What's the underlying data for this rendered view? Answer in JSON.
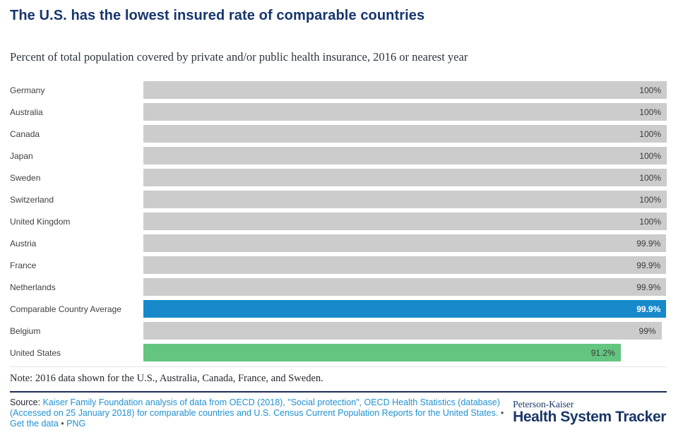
{
  "header": {
    "title": "The U.S. has the lowest insured rate of comparable countries",
    "subtitle": "Percent of total population covered by private and/or public health insurance, 2016 or nearest year"
  },
  "chart_data": {
    "type": "bar",
    "orientation": "horizontal",
    "xlim": [
      0,
      100
    ],
    "unit": "%",
    "grid": false,
    "value_labels_position": "inside-end",
    "categories": [
      "Germany",
      "Australia",
      "Canada",
      "Japan",
      "Sweden",
      "Switzerland",
      "United Kingdom",
      "Austria",
      "France",
      "Netherlands",
      "Comparable Country Average",
      "Belgium",
      "United States"
    ],
    "values": [
      100,
      100,
      100,
      100,
      100,
      100,
      100,
      99.9,
      99.9,
      99.9,
      99.9,
      99,
      91.2
    ],
    "rows": [
      {
        "label": "Germany",
        "value": 100,
        "display": "100%",
        "style": "default"
      },
      {
        "label": "Australia",
        "value": 100,
        "display": "100%",
        "style": "default"
      },
      {
        "label": "Canada",
        "value": 100,
        "display": "100%",
        "style": "default"
      },
      {
        "label": "Japan",
        "value": 100,
        "display": "100%",
        "style": "default"
      },
      {
        "label": "Sweden",
        "value": 100,
        "display": "100%",
        "style": "default"
      },
      {
        "label": "Switzerland",
        "value": 100,
        "display": "100%",
        "style": "default"
      },
      {
        "label": "United Kingdom",
        "value": 100,
        "display": "100%",
        "style": "default"
      },
      {
        "label": "Austria",
        "value": 99.9,
        "display": "99.9%",
        "style": "default"
      },
      {
        "label": "France",
        "value": 99.9,
        "display": "99.9%",
        "style": "default"
      },
      {
        "label": "Netherlands",
        "value": 99.9,
        "display": "99.9%",
        "style": "default"
      },
      {
        "label": "Comparable Country Average",
        "value": 99.9,
        "display": "99.9%",
        "style": "average"
      },
      {
        "label": "Belgium",
        "value": 99,
        "display": "99%",
        "style": "default"
      },
      {
        "label": "United States",
        "value": 91.2,
        "display": "91.2%",
        "style": "us"
      }
    ]
  },
  "note": {
    "text": "Note: 2016 data shown for the U.S., Australia, Canada, France, and Sweden."
  },
  "footer": {
    "source_label": "Source:",
    "source_link_text": "Kaiser Family Foundation analysis of data from OECD (2018), \"Social protection\", OECD Health Statistics (database) (Accessed on 25 January 2018) for comparable countries and U.S. Census Current Population Reports for the United States.",
    "bullet": "•",
    "get_data_label": "Get the data",
    "png_label": "PNG"
  },
  "logo": {
    "top": "Peterson-Kaiser",
    "bottom": "Health System Tracker"
  },
  "colors": {
    "bar_default": "#cccccc",
    "bar_average": "#1789cb",
    "bar_us": "#63c57f",
    "title_navy": "#17356e",
    "link_blue": "#2191d0",
    "separator_navy": "#1a2e54",
    "logo_navy": "#1a3668"
  }
}
